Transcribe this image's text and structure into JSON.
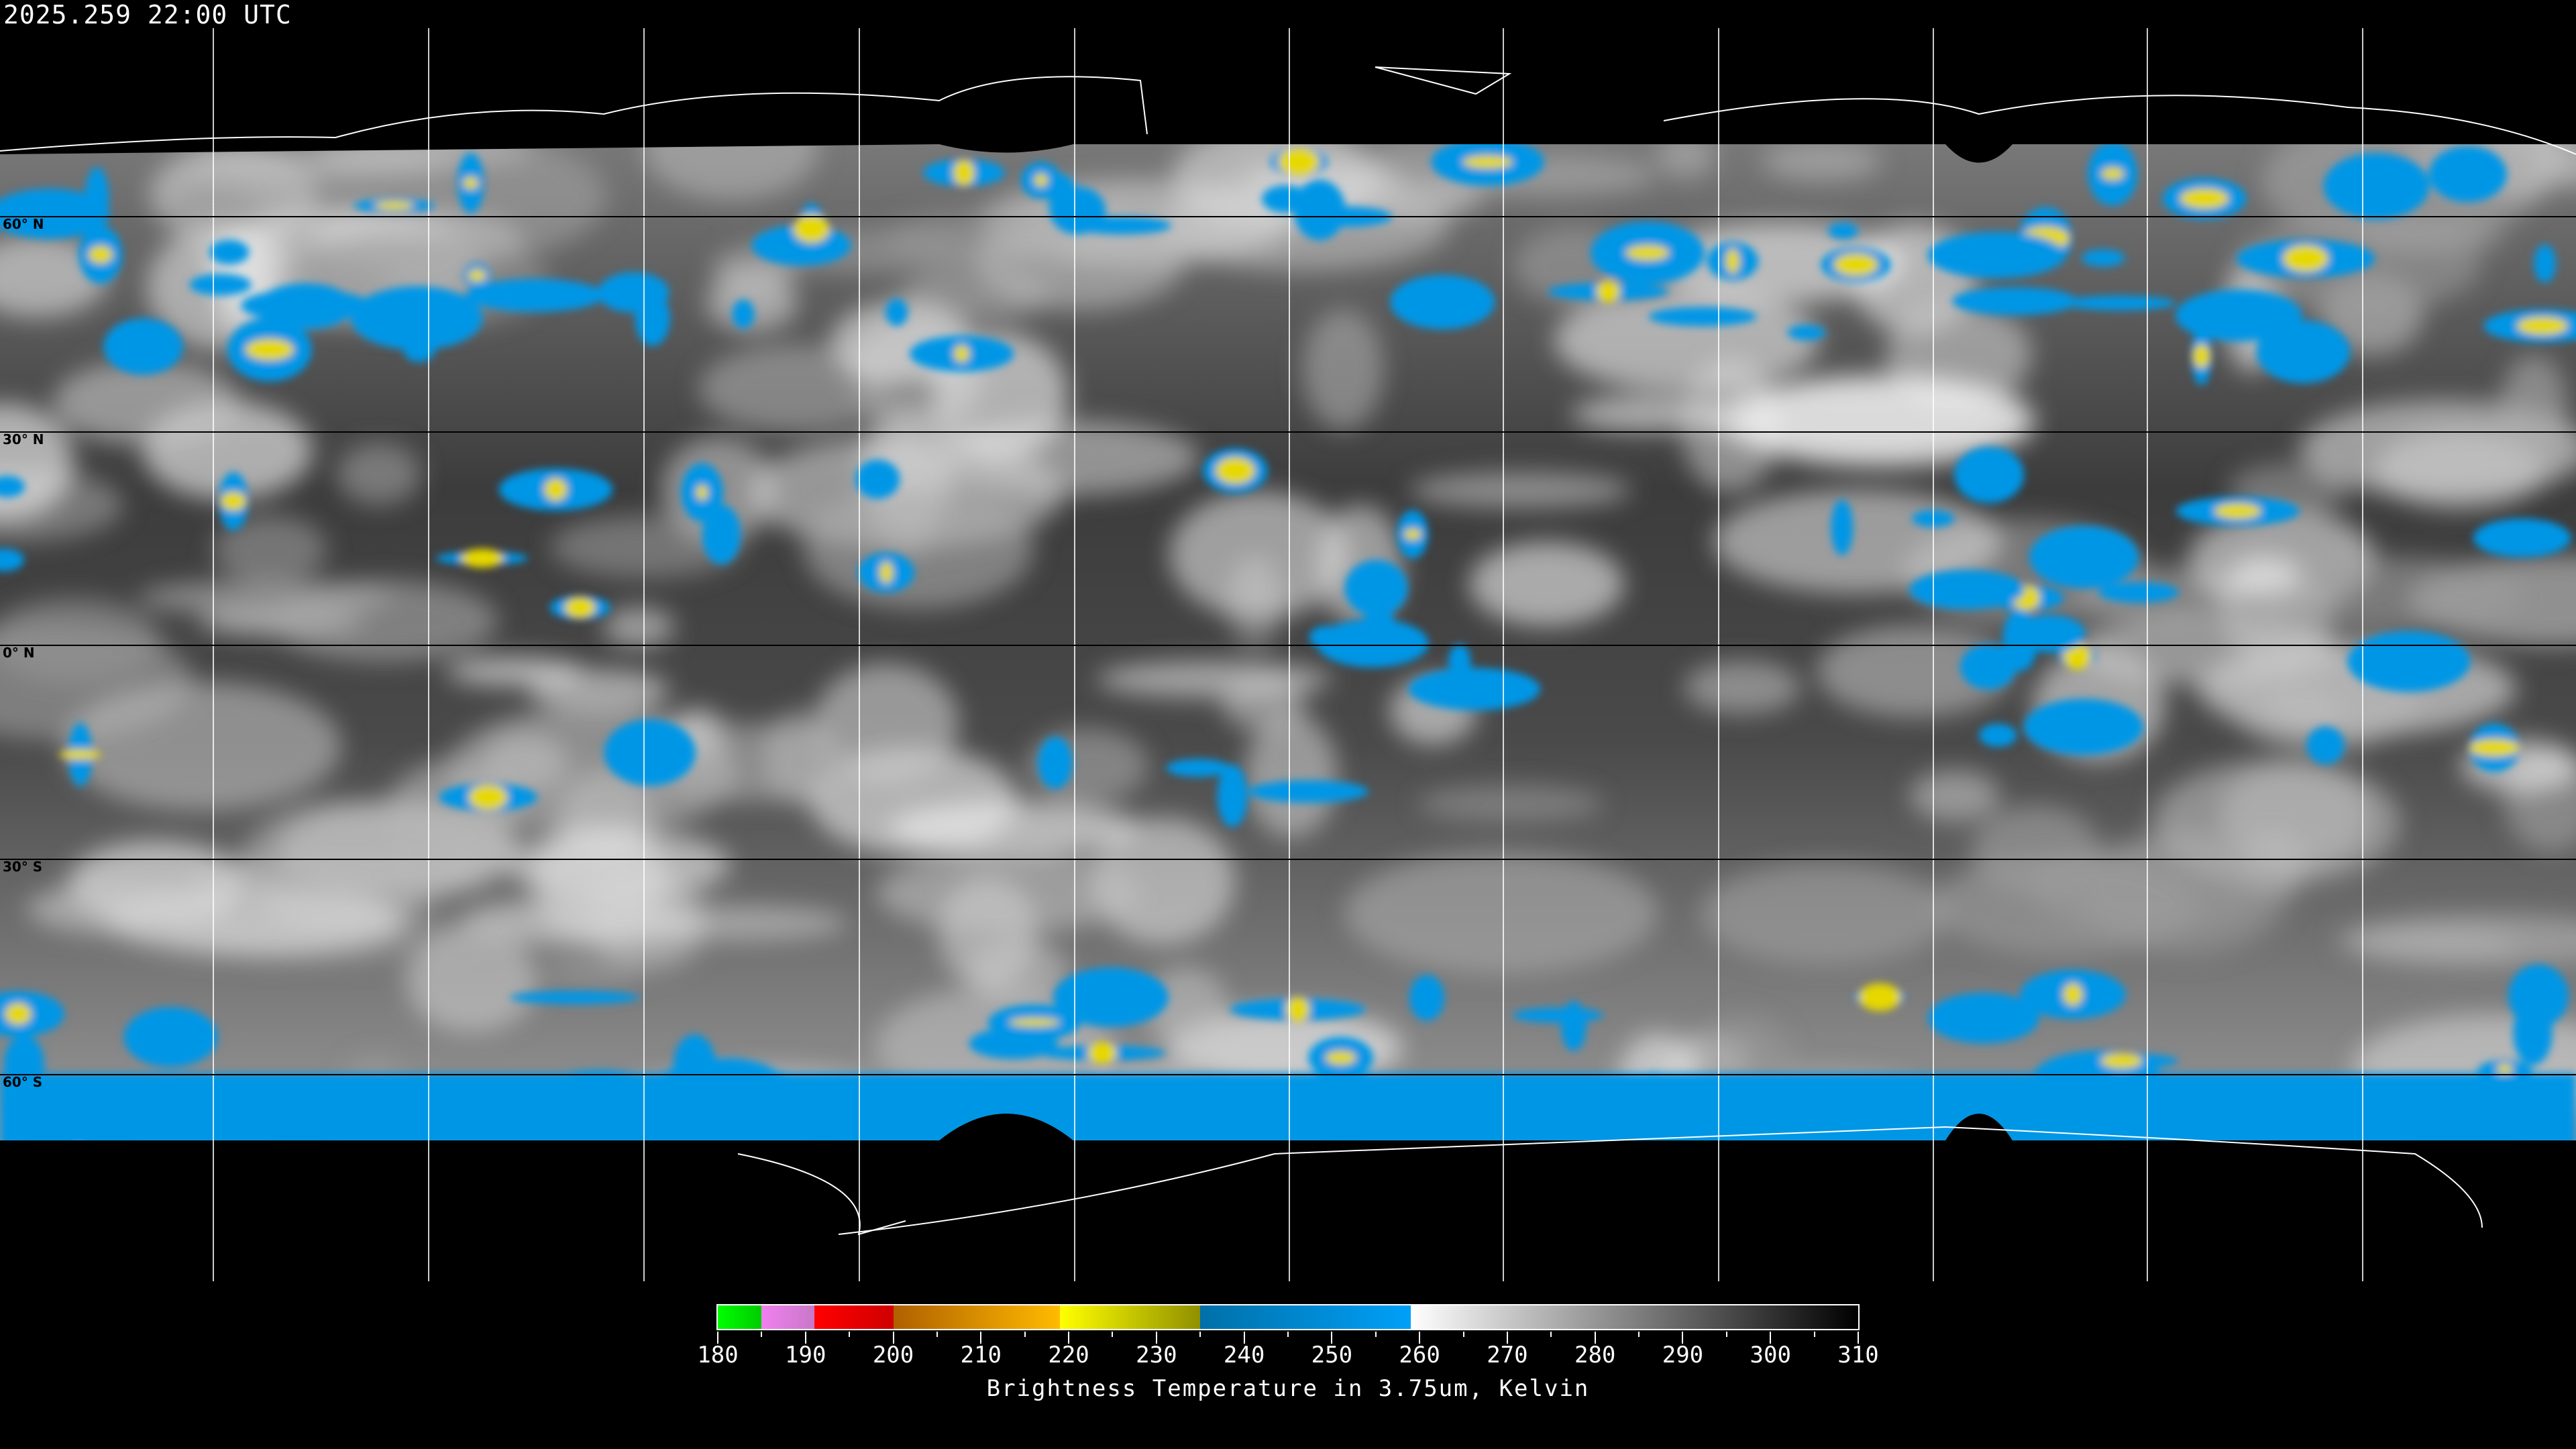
{
  "timestamp": "2025.259 22:00 UTC",
  "map": {
    "projection": "equirectangular global",
    "lat_labels": [
      "60° N",
      "30° N",
      "0° N",
      "30° S",
      "60° S"
    ],
    "colors": {
      "ocean_cloud_free": "#3a3a3a",
      "cold_cloud": "#0096e6",
      "very_cold": "#e6d800",
      "coastline": "#ffffff",
      "gridline": "#ffffff"
    }
  },
  "colorbar": {
    "title": "Brightness Temperature in 3.75um, Kelvin",
    "min": 180,
    "max": 310,
    "tick_labels": [
      "180",
      "190",
      "200",
      "210",
      "220",
      "230",
      "240",
      "250",
      "260",
      "270",
      "280",
      "290",
      "300",
      "310"
    ],
    "segments": [
      {
        "from": 180,
        "to": 185,
        "start": "#00ff00",
        "end": "#00cc00"
      },
      {
        "from": 185,
        "to": 191,
        "start": "#f080f0",
        "end": "#c878c8"
      },
      {
        "from": 191,
        "to": 200,
        "start": "#ff0000",
        "end": "#d00000"
      },
      {
        "from": 200,
        "to": 219,
        "start": "#b06000",
        "end": "#ffbb00"
      },
      {
        "from": 219,
        "to": 235,
        "start": "#ffff00",
        "end": "#909000"
      },
      {
        "from": 235,
        "to": 259,
        "start": "#0070a8",
        "end": "#00a0f8"
      },
      {
        "from": 259,
        "to": 310,
        "start": "#ffffff",
        "end": "#000000"
      }
    ]
  }
}
